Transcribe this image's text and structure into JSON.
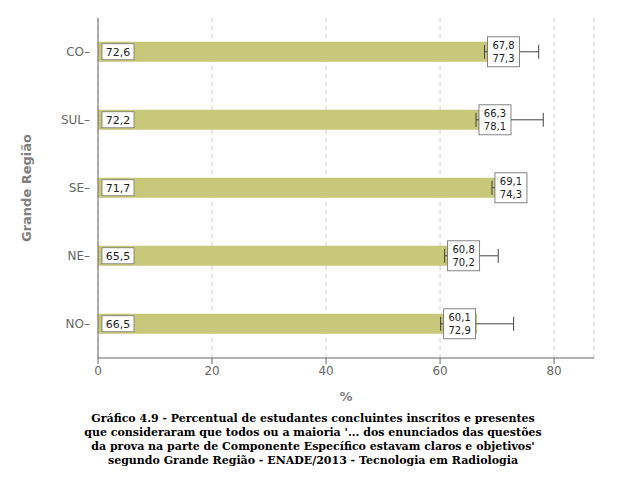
{
  "chart_data": {
    "type": "bar",
    "orientation": "horizontal",
    "title": "Gráfico 4.9 - Percentual de estudantes concluintes inscritos e presentes\nque consideraram que todos ou a maioria '... dos enunciados das questões\nda prova na parte de Componente Específico estavam claros e objetivos'\nsegundo Grande Região - ENADE/2013 - Tecnologia em Radiologia",
    "xlabel": "%",
    "ylabel": "Grande Região",
    "categories": [
      "CO–",
      "SUL–",
      "SE–",
      "NE–",
      "NO–"
    ],
    "values": [
      72.6,
      72.2,
      71.7,
      65.5,
      66.5
    ],
    "value_labels": [
      "72,6",
      "72,2",
      "71,7",
      "65,5",
      "66,5"
    ],
    "data_labels": true,
    "error_low": [
      67.8,
      66.3,
      69.1,
      60.8,
      60.1
    ],
    "error_low_labels": [
      "67,8",
      "66,3",
      "69,1",
      "60,8",
      "60,1"
    ],
    "error_high": [
      77.3,
      78.1,
      74.3,
      70.2,
      72.9
    ],
    "error_high_labels": [
      "77,3",
      "78,1",
      "74,3",
      "70,2",
      "72,9"
    ],
    "color": "#c8c87a",
    "xlim": [
      0,
      87
    ],
    "xticks": [
      0,
      20,
      40,
      60,
      80
    ],
    "grid": true
  }
}
